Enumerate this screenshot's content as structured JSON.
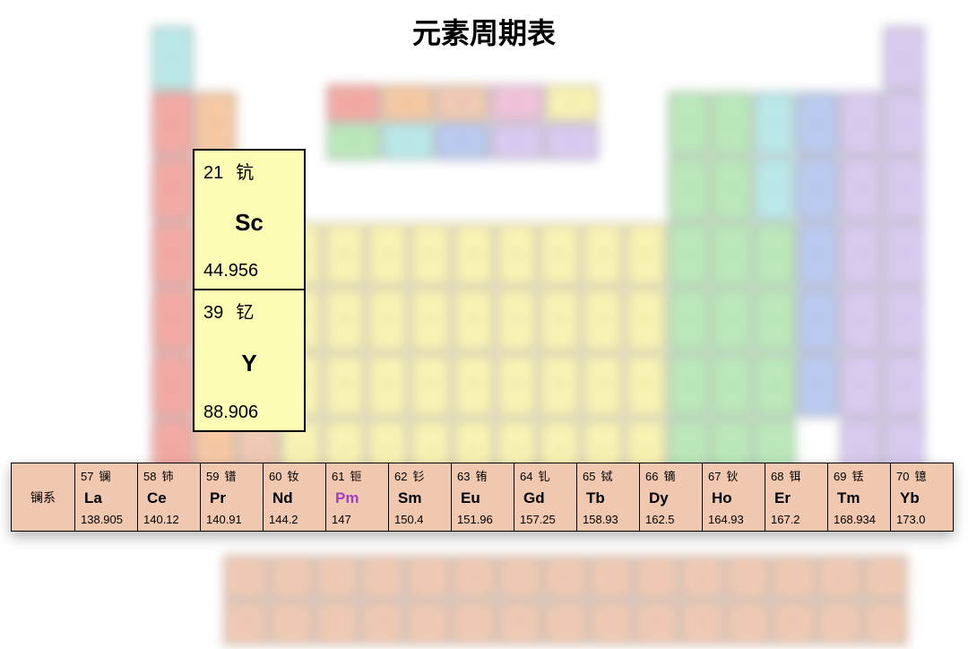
{
  "title": "元素周期表",
  "colors": {
    "highlight_bg": "#fdfcb4",
    "lanthanide_bg": "#f0c8b0",
    "lanthanide_label_bg": "#f0c8b0",
    "pm_symbol_color": "#a040c0",
    "text": "#000000"
  },
  "highlight_cells": [
    {
      "number": "21",
      "name_cn": "钪",
      "symbol": "Sc",
      "mass": "44.956"
    },
    {
      "number": "39",
      "name_cn": "钇",
      "symbol": "Y",
      "mass": "88.906"
    }
  ],
  "lanthanide_label": "镧系",
  "lanthanides": [
    {
      "number": "57",
      "name_cn": "镧",
      "symbol": "La",
      "mass": "138.905"
    },
    {
      "number": "58",
      "name_cn": "铈",
      "symbol": "Ce",
      "mass": "140.12"
    },
    {
      "number": "59",
      "name_cn": "镨",
      "symbol": "Pr",
      "mass": "140.91"
    },
    {
      "number": "60",
      "name_cn": "钕",
      "symbol": "Nd",
      "mass": "144.2"
    },
    {
      "number": "61",
      "name_cn": "钷",
      "symbol": "Pm",
      "mass": "147",
      "symbol_color": "#a040c0"
    },
    {
      "number": "62",
      "name_cn": "钐",
      "symbol": "Sm",
      "mass": "150.4"
    },
    {
      "number": "63",
      "name_cn": "铕",
      "symbol": "Eu",
      "mass": "151.96"
    },
    {
      "number": "64",
      "name_cn": "钆",
      "symbol": "Gd",
      "mass": "157.25"
    },
    {
      "number": "65",
      "name_cn": "铽",
      "symbol": "Tb",
      "mass": "158.93"
    },
    {
      "number": "66",
      "name_cn": "镝",
      "symbol": "Dy",
      "mass": "162.5"
    },
    {
      "number": "67",
      "name_cn": "钬",
      "symbol": "Ho",
      "mass": "164.93"
    },
    {
      "number": "68",
      "name_cn": "铒",
      "symbol": "Er",
      "mass": "167.2"
    },
    {
      "number": "69",
      "name_cn": "铥",
      "symbol": "Tm",
      "mass": "168.934"
    },
    {
      "number": "70",
      "name_cn": "镱",
      "symbol": "Yb",
      "mass": "173.0"
    }
  ],
  "bg_palette": {
    "alkali": "#f4a6a0",
    "alkaline_earth": "#f6c7a0",
    "transition": "#f9f2b0",
    "post_transition": "#b8e8b8",
    "metalloid": "#b8e8e8",
    "nonmetal": "#b8c8f0",
    "halogen": "#d8c8f0",
    "noble": "#f0c0d8",
    "lan_act": "#f0c8b0"
  }
}
